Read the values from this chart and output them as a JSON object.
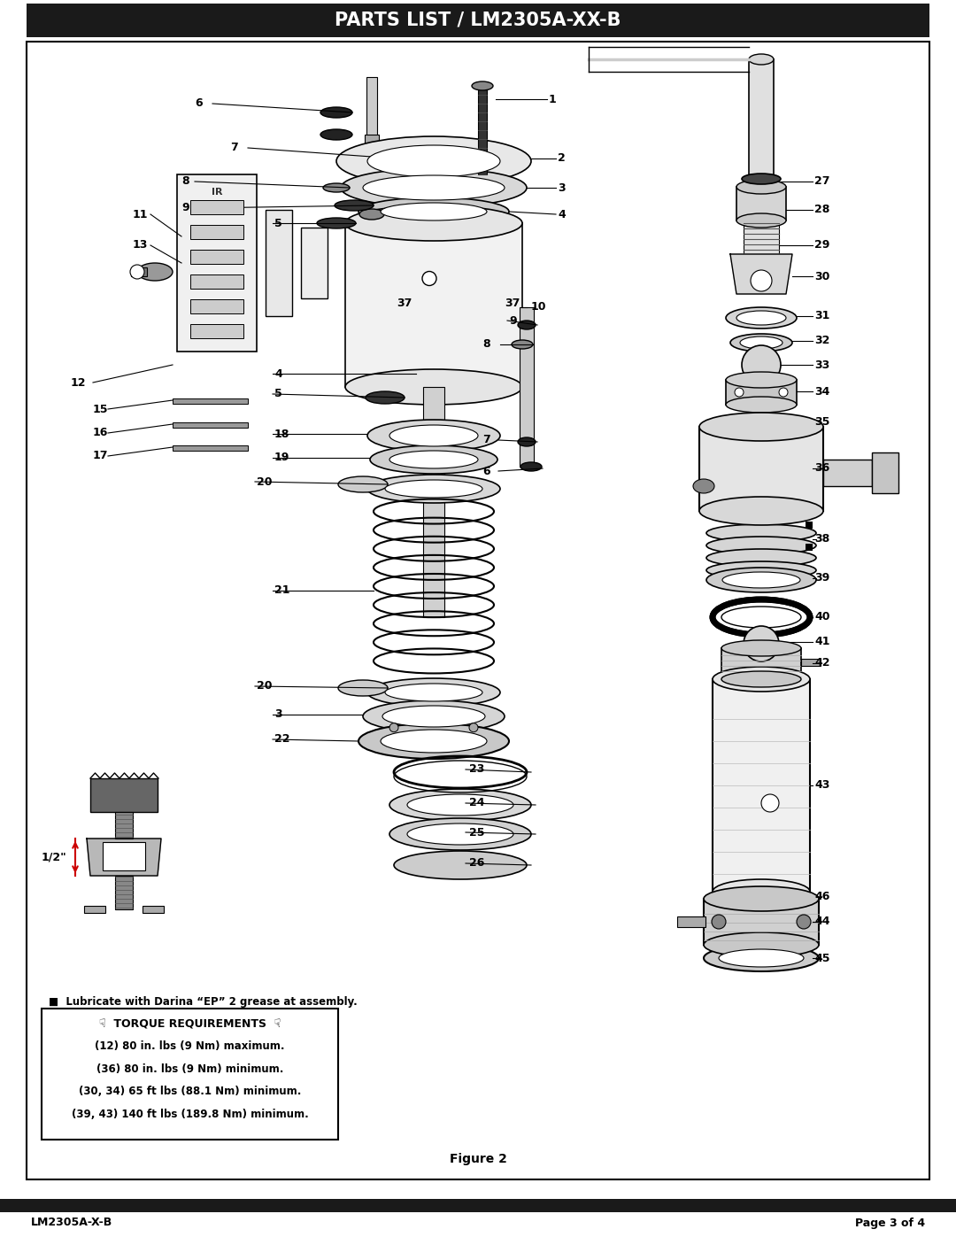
{
  "title": "PARTS LIST / LM2305A-XX-B",
  "title_bg": "#1a1a1a",
  "title_color": "#ffffff",
  "title_fontsize": 15,
  "page_bg": "#ffffff",
  "border_color": "#000000",
  "footer_bar_color": "#1a1a1a",
  "footer_left": "LM2305A-X-B",
  "footer_right": "Page 3 of 4",
  "footer_fontsize": 9,
  "figure_caption": "Figure 2",
  "lubricate_note": "■  Lubricate with Darina “EP” 2 grease at assembly.",
  "torque_title": "☟  TORQUE REQUIREMENTS  ☟",
  "torque_lines": [
    "(12) 80 in. lbs (9 Nm) maximum.",
    "(36) 80 in. lbs (9 Nm) minimum.",
    "(30, 34) 65 ft lbs (88.1 Nm) minimum.",
    "(39, 43) 140 ft lbs (189.8 Nm) minimum."
  ],
  "half_inch_label": "1/2\""
}
